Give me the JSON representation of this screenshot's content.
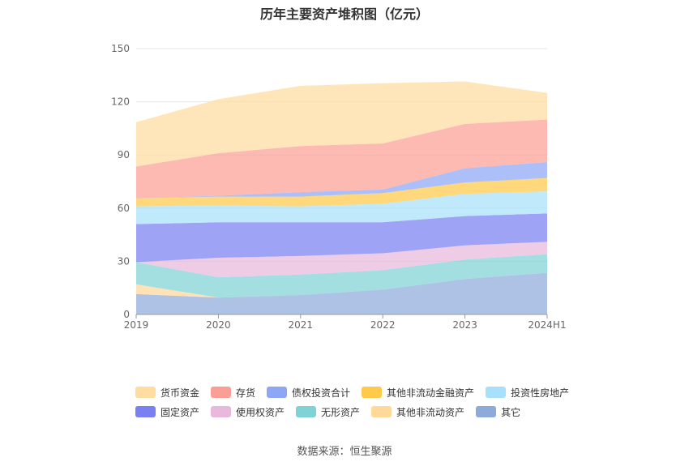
{
  "title": "历年主要资产堆积图（亿元）",
  "source": "数据来源：恒生聚源",
  "chart_data": {
    "type": "area",
    "stacked": true,
    "categories": [
      "2019",
      "2020",
      "2021",
      "2022",
      "2023",
      "2024H1"
    ],
    "ylim": [
      0,
      150
    ],
    "yticks": [
      0,
      30,
      60,
      90,
      120,
      150
    ],
    "grid": true,
    "legend_position": "bottom",
    "series": [
      {
        "name": "其它",
        "color": "#8eaadb",
        "values": [
          11.5,
          9.5,
          11.0,
          14.0,
          20.0,
          23.5
        ]
      },
      {
        "name": "其他非流动资产",
        "color": "#ffd89a",
        "values": [
          5.5,
          0.0,
          0.0,
          0.0,
          0.0,
          0.0
        ]
      },
      {
        "name": "无形资产",
        "color": "#7fd3d6",
        "values": [
          12.5,
          11.5,
          11.5,
          11.0,
          11.0,
          10.5
        ]
      },
      {
        "name": "使用权资产",
        "color": "#e8b9dc",
        "values": [
          0.0,
          11.0,
          10.5,
          9.5,
          8.0,
          7.0
        ]
      },
      {
        "name": "固定资产",
        "color": "#7a80f2",
        "values": [
          21.5,
          20.0,
          19.0,
          17.5,
          16.5,
          16.0
        ]
      },
      {
        "name": "投资性房地产",
        "color": "#a8e0fb",
        "values": [
          10.0,
          9.5,
          9.0,
          10.5,
          12.5,
          12.5
        ]
      },
      {
        "name": "其他非流动金融资产",
        "color": "#ffc94a",
        "values": [
          4.5,
          5.0,
          5.5,
          6.0,
          6.5,
          7.5
        ]
      },
      {
        "name": "债权投资合计",
        "color": "#8ea6f6",
        "values": [
          0.0,
          0.5,
          2.5,
          2.0,
          8.0,
          9.0
        ]
      },
      {
        "name": "存货",
        "color": "#fb9f96",
        "values": [
          18.0,
          24.0,
          26.0,
          26.0,
          25.0,
          24.0
        ]
      },
      {
        "name": "货币资金",
        "color": "#ffdca0",
        "values": [
          25.0,
          30.5,
          34.0,
          34.0,
          24.0,
          15.0
        ]
      }
    ],
    "legend_order": [
      "货币资金",
      "存货",
      "债权投资合计",
      "其他非流动金融资产",
      "投资性房地产",
      "固定资产",
      "使用权资产",
      "无形资产",
      "其他非流动资产",
      "其它"
    ]
  }
}
